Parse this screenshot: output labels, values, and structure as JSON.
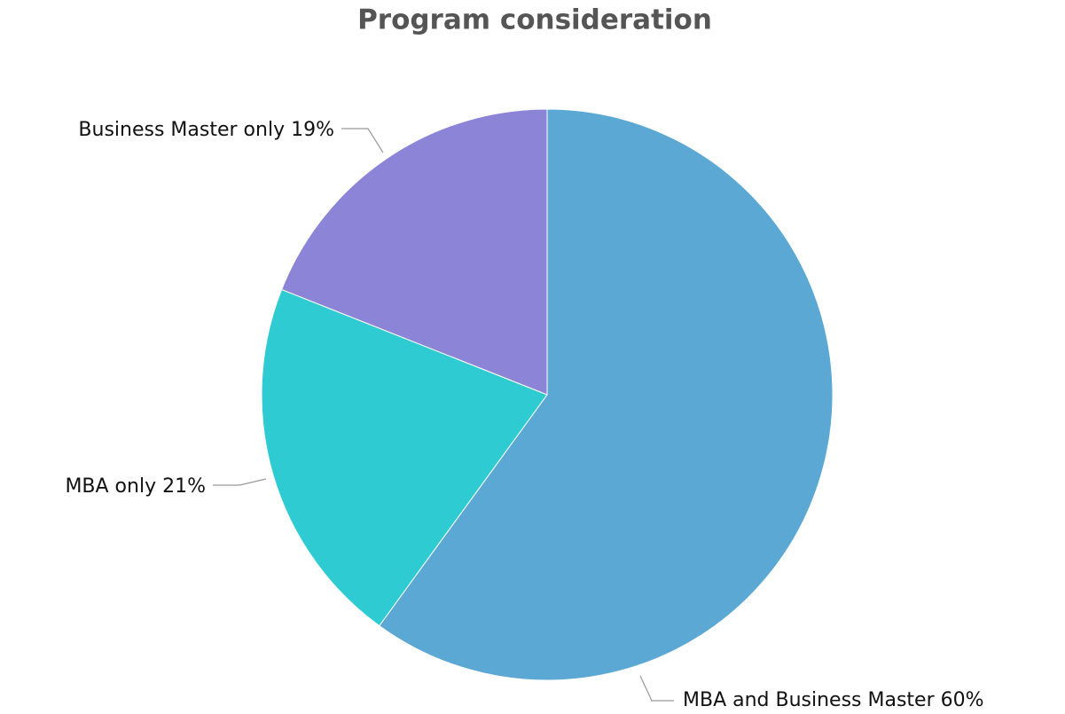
{
  "chart_data": {
    "type": "pie",
    "title": "Program consideration",
    "categories": [
      "MBA and Business Master",
      "MBA only",
      "Business Master only"
    ],
    "values": [
      60,
      21,
      19
    ],
    "value_labels": [
      "60%",
      "21%",
      "19%"
    ],
    "colors": [
      "#5ba8d4",
      "#2ecbd3",
      "#8b84d7"
    ]
  }
}
